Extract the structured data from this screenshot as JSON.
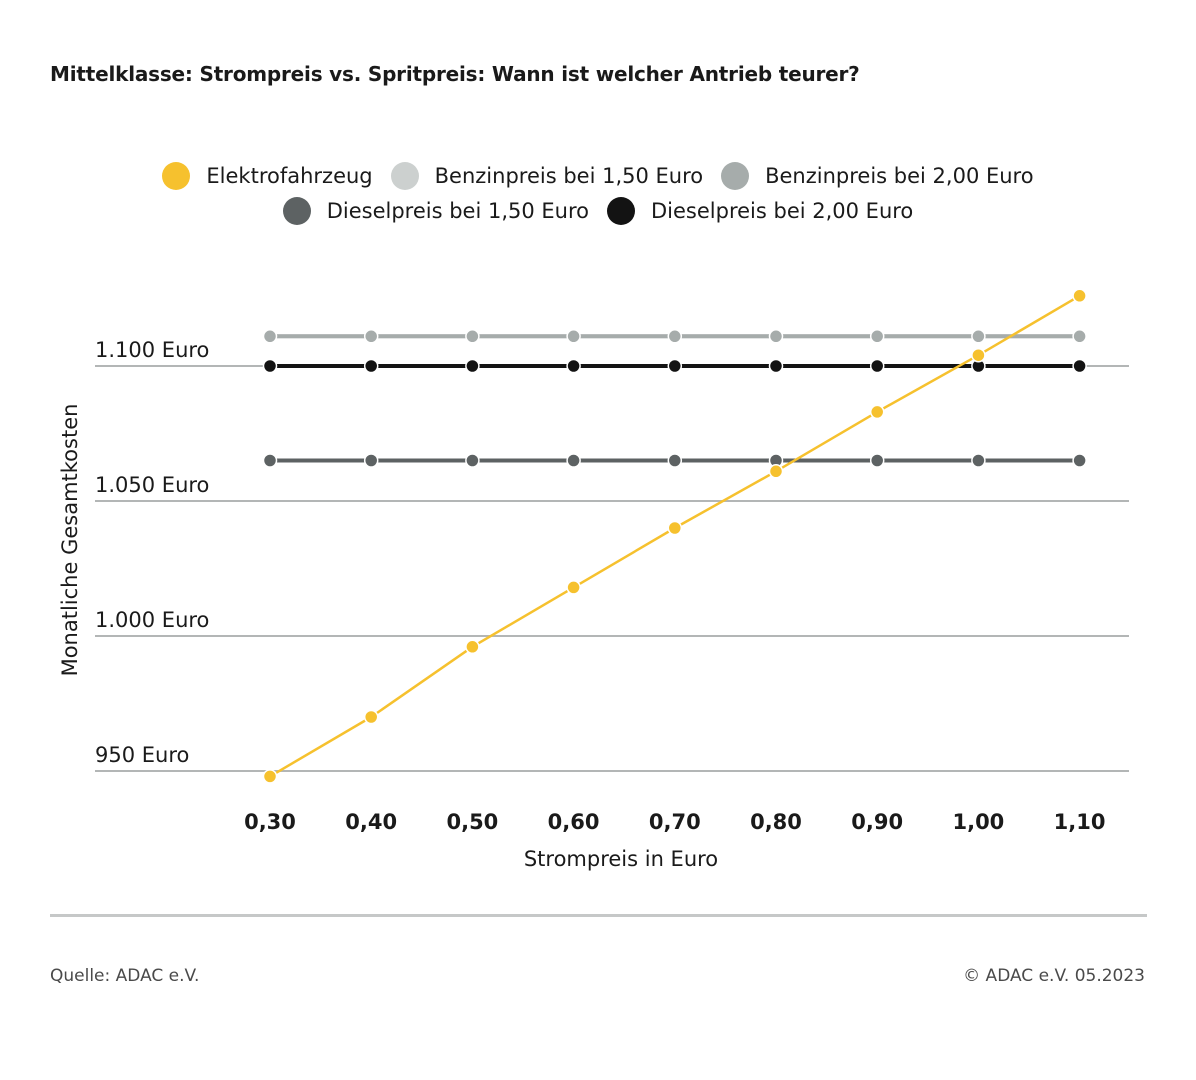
{
  "title": "Mittelklasse: Strompreis vs. Spritpreis: Wann ist welcher Antrieb teurer?",
  "footer": {
    "source": "Quelle: ADAC e.V.",
    "copyright": "© ADAC e.V. 05.2023"
  },
  "legend_colors": {
    "elektro": "#f6c12e",
    "benzin150": "#ccd0cf",
    "benzin200": "#a6acab",
    "diesel150": "#5d6263",
    "diesel200": "#131313"
  },
  "chart_data": {
    "type": "line",
    "title": "Mittelklasse: Strompreis vs. Spritpreis: Wann ist welcher Antrieb teurer?",
    "xlabel": "Strompreis in Euro",
    "ylabel": "Monatliche Gesamtkosten",
    "categories": [
      "0,30",
      "0,40",
      "0,50",
      "0,60",
      "0,70",
      "0,80",
      "0,90",
      "1,00",
      "1,10"
    ],
    "y_ticks": [
      950,
      1000,
      1050,
      1100
    ],
    "y_tick_labels": [
      "950 Euro",
      "1.000 Euro",
      "1.050 Euro",
      "1.100 Euro"
    ],
    "ylim": [
      950,
      1100
    ],
    "grid": true,
    "legend_position": "top-center",
    "series": [
      {
        "name": "Elektrofahrzeug",
        "color": "#f6c12e",
        "values": [
          948,
          970,
          996,
          1018,
          1040,
          1061,
          1083,
          1104,
          1126
        ]
      },
      {
        "name": "Benzinpreis bei 1,50 Euro",
        "color": "#ccd0cf",
        "values": [
          1111,
          1111,
          1111,
          1111,
          1111,
          1111,
          1111,
          1111,
          1111
        ]
      },
      {
        "name": "Benzinpreis bei 2,00 Euro",
        "color": "#a6acab",
        "values": [
          1111,
          1111,
          1111,
          1111,
          1111,
          1111,
          1111,
          1111,
          1111
        ]
      },
      {
        "name": "Dieselpreis bei 1,50 Euro",
        "color": "#5d6263",
        "values": [
          1065,
          1065,
          1065,
          1065,
          1065,
          1065,
          1065,
          1065,
          1065
        ]
      },
      {
        "name": "Dieselpreis bei 2,00 Euro",
        "color": "#131313",
        "values": [
          1100,
          1100,
          1100,
          1100,
          1100,
          1100,
          1100,
          1100,
          1100
        ]
      }
    ]
  }
}
